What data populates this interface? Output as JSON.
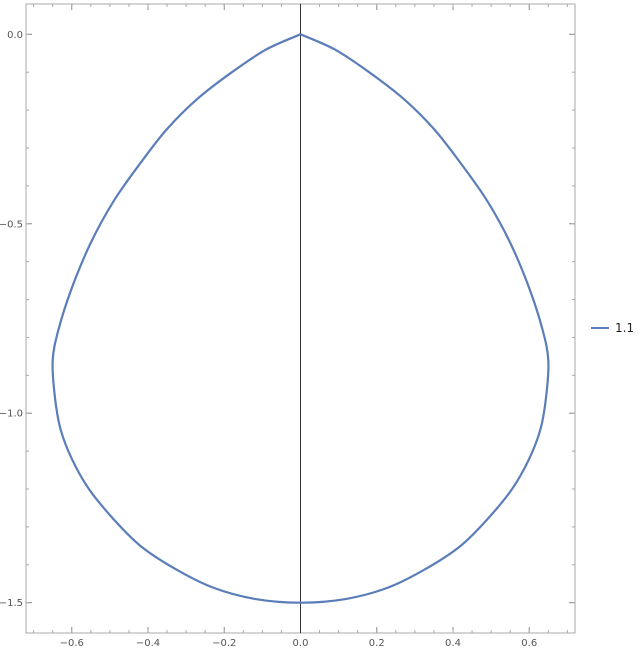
{
  "chart_data": {
    "type": "line",
    "title": "",
    "xlabel": "",
    "ylabel": "",
    "xlim": [
      -0.72,
      0.72
    ],
    "ylim": [
      -1.58,
      0.08
    ],
    "x_ticks": [
      {
        "value": -0.6,
        "label": "−0.6"
      },
      {
        "value": -0.4,
        "label": "−0.4"
      },
      {
        "value": -0.2,
        "label": "−0.2"
      },
      {
        "value": 0.0,
        "label": "0.0"
      },
      {
        "value": 0.2,
        "label": "0.2"
      },
      {
        "value": 0.4,
        "label": "0.4"
      },
      {
        "value": 0.6,
        "label": "0.6"
      }
    ],
    "y_ticks": [
      {
        "value": 0.0,
        "label": "0.0"
      },
      {
        "value": -0.5,
        "label": "−0.5"
      },
      {
        "value": -1.0,
        "label": "−1.0"
      },
      {
        "value": -1.5,
        "label": "−1.5"
      }
    ],
    "grid": false,
    "reference_line": {
      "x": 0.0
    },
    "legend_position": "right",
    "series": [
      {
        "name": "1.1",
        "color": "#5b7db8",
        "points": [
          [
            0.0,
            0.0
          ],
          [
            0.09,
            -0.04
          ],
          [
            0.18,
            -0.1
          ],
          [
            0.27,
            -0.17
          ],
          [
            0.35,
            -0.25
          ],
          [
            0.42,
            -0.34
          ],
          [
            0.49,
            -0.44
          ],
          [
            0.55,
            -0.55
          ],
          [
            0.6,
            -0.67
          ],
          [
            0.635,
            -0.78
          ],
          [
            0.65,
            -0.86
          ],
          [
            0.645,
            -0.95
          ],
          [
            0.63,
            -1.04
          ],
          [
            0.6,
            -1.12
          ],
          [
            0.555,
            -1.2
          ],
          [
            0.49,
            -1.28
          ],
          [
            0.42,
            -1.35
          ],
          [
            0.33,
            -1.41
          ],
          [
            0.23,
            -1.46
          ],
          [
            0.12,
            -1.49
          ],
          [
            0.0,
            -1.5
          ],
          [
            -0.12,
            -1.49
          ],
          [
            -0.23,
            -1.46
          ],
          [
            -0.33,
            -1.41
          ],
          [
            -0.42,
            -1.35
          ],
          [
            -0.49,
            -1.28
          ],
          [
            -0.555,
            -1.2
          ],
          [
            -0.6,
            -1.12
          ],
          [
            -0.63,
            -1.04
          ],
          [
            -0.645,
            -0.95
          ],
          [
            -0.65,
            -0.86
          ],
          [
            -0.635,
            -0.78
          ],
          [
            -0.6,
            -0.67
          ],
          [
            -0.55,
            -0.55
          ],
          [
            -0.49,
            -0.44
          ],
          [
            -0.42,
            -0.34
          ],
          [
            -0.35,
            -0.25
          ],
          [
            -0.27,
            -0.17
          ],
          [
            -0.18,
            -0.1
          ],
          [
            -0.09,
            -0.04
          ],
          [
            0.0,
            0.0
          ]
        ]
      }
    ]
  }
}
